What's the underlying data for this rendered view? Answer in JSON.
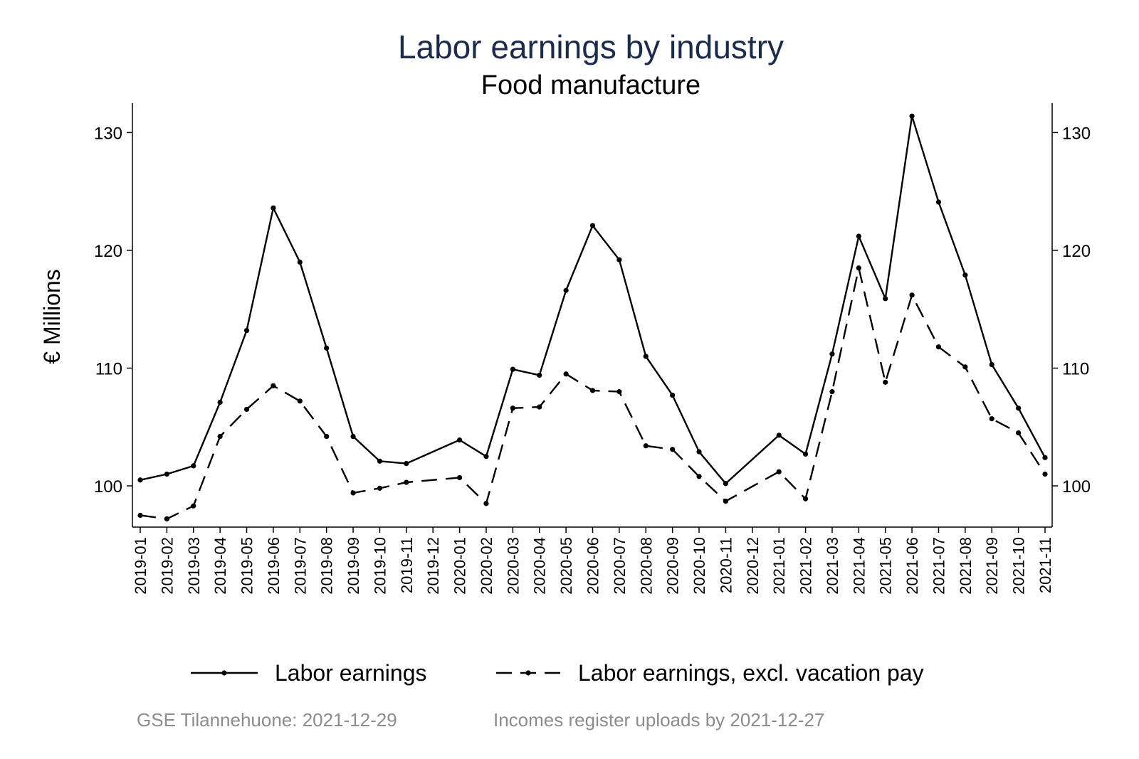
{
  "chart_data": {
    "type": "line",
    "title": "Labor earnings by industry",
    "subtitle": "Food manufacture",
    "ylabel": "€ Millions",
    "xlabel": "",
    "ylim": [
      96.5,
      132.5
    ],
    "yticks": [
      100,
      110,
      120,
      130
    ],
    "grid": false,
    "legend_position": "bottom",
    "categories": [
      "2019-01",
      "2019-02",
      "2019-03",
      "2019-04",
      "2019-05",
      "2019-06",
      "2019-07",
      "2019-08",
      "2019-09",
      "2019-10",
      "2019-11",
      "2019-12",
      "2020-01",
      "2020-02",
      "2020-03",
      "2020-04",
      "2020-05",
      "2020-06",
      "2020-07",
      "2020-08",
      "2020-09",
      "2020-10",
      "2020-11",
      "2020-12",
      "2021-01",
      "2021-02",
      "2021-03",
      "2021-04",
      "2021-05",
      "2021-06",
      "2021-07",
      "2021-08",
      "2021-09",
      "2021-10",
      "2021-11"
    ],
    "series": [
      {
        "name": "Labor earnings",
        "style": "solid",
        "color": "#000000",
        "values": [
          100.5,
          101.0,
          101.7,
          107.1,
          113.2,
          123.6,
          119.0,
          111.7,
          104.2,
          102.1,
          101.9,
          null,
          103.9,
          102.5,
          109.9,
          109.4,
          116.6,
          122.1,
          119.2,
          111.0,
          107.7,
          102.9,
          100.2,
          null,
          104.3,
          102.7,
          111.2,
          121.2,
          115.9,
          131.4,
          124.1,
          117.9,
          110.3,
          106.6,
          102.4
        ]
      },
      {
        "name": "Labor earnings, excl. vacation pay",
        "style": "dashed",
        "color": "#000000",
        "values": [
          97.5,
          97.2,
          98.3,
          104.2,
          106.5,
          108.5,
          107.2,
          104.2,
          99.4,
          99.8,
          100.3,
          null,
          100.7,
          98.5,
          106.6,
          106.7,
          109.5,
          108.1,
          108.0,
          103.4,
          103.1,
          100.8,
          98.7,
          null,
          101.2,
          98.9,
          108.0,
          118.5,
          108.8,
          116.2,
          111.8,
          110.1,
          105.7,
          104.5,
          101.0
        ]
      }
    ]
  },
  "footer": {
    "source": "GSE Tilannehuone: 2021-12-29",
    "upload": "Incomes register uploads by 2021-12-27"
  }
}
